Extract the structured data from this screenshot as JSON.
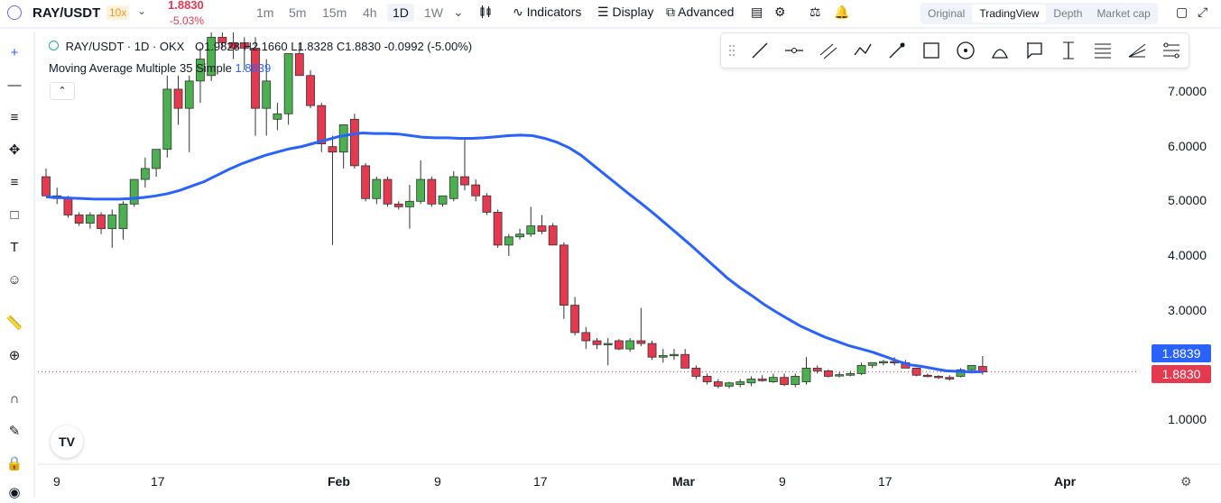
{
  "header": {
    "symbol": "RAY/USDT",
    "leverage": "10x",
    "price": "1.8830",
    "change_pct": "-5.03%",
    "timeframes": [
      "1m",
      "5m",
      "15m",
      "4h",
      "1D",
      "1W"
    ],
    "active_timeframe": "1D",
    "indicators_label": "Indicators",
    "display_label": "Display",
    "advanced_label": "Advanced",
    "views": [
      "Original",
      "TradingView",
      "Depth",
      "Market cap"
    ],
    "active_view": "TradingView"
  },
  "legend": {
    "title": "RAY/USDT · 1D · OKX",
    "ohlc": "O1.9828 H2.1660 L1.8328 C1.8830 -0.0992 (-5.00%)",
    "ma_label": "Moving Average Multiple 35 Simple",
    "ma_value": "1.8839"
  },
  "tags": {
    "ma": "1.8839",
    "last": "1.8830"
  },
  "colors": {
    "up": "#26a69a",
    "up_fill": "#4caf50",
    "down": "#e53950",
    "ma": "#2962ff"
  },
  "chart_data": {
    "type": "candlestick",
    "y_ticks": [
      "1.0000",
      "3.0000",
      "4.0000",
      "5.0000",
      "6.0000",
      "7.0000"
    ],
    "x_ticks": [
      "9",
      "17",
      "Feb",
      "9",
      "17",
      "Mar",
      "9",
      "17",
      "Apr"
    ],
    "ylim": [
      1.0,
      8.0
    ],
    "grid": false,
    "candles": [
      {
        "o": 5.45,
        "h": 5.6,
        "l": 5.1,
        "c": 5.1
      },
      {
        "o": 5.1,
        "h": 5.25,
        "l": 4.95,
        "c": 5.05
      },
      {
        "o": 5.05,
        "h": 5.1,
        "l": 4.7,
        "c": 4.75
      },
      {
        "o": 4.75,
        "h": 4.8,
        "l": 4.55,
        "c": 4.6
      },
      {
        "o": 4.6,
        "h": 4.8,
        "l": 4.5,
        "c": 4.75
      },
      {
        "o": 4.75,
        "h": 4.8,
        "l": 4.4,
        "c": 4.5
      },
      {
        "o": 4.5,
        "h": 4.85,
        "l": 4.15,
        "c": 4.75
      },
      {
        "o": 4.5,
        "h": 5.0,
        "l": 4.3,
        "c": 4.95
      },
      {
        "o": 4.95,
        "h": 5.4,
        "l": 4.9,
        "c": 5.4
      },
      {
        "o": 5.4,
        "h": 5.8,
        "l": 5.25,
        "c": 5.6
      },
      {
        "o": 5.6,
        "h": 5.9,
        "l": 5.45,
        "c": 5.95
      },
      {
        "o": 5.95,
        "h": 7.3,
        "l": 5.8,
        "c": 7.05
      },
      {
        "o": 7.05,
        "h": 7.3,
        "l": 6.4,
        "c": 6.7
      },
      {
        "o": 6.7,
        "h": 7.3,
        "l": 5.9,
        "c": 7.2
      },
      {
        "o": 7.2,
        "h": 7.8,
        "l": 6.8,
        "c": 7.6
      },
      {
        "o": 7.3,
        "h": 8.2,
        "l": 7.2,
        "c": 8.0
      },
      {
        "o": 8.0,
        "h": 8.2,
        "l": 7.8,
        "c": 7.9
      },
      {
        "o": 7.9,
        "h": 8.4,
        "l": 7.6,
        "c": 7.8
      },
      {
        "o": 7.9,
        "h": 8.0,
        "l": 7.4,
        "c": 7.8
      },
      {
        "o": 7.8,
        "h": 8.0,
        "l": 6.2,
        "c": 6.7
      },
      {
        "o": 6.7,
        "h": 7.6,
        "l": 6.2,
        "c": 7.2
      },
      {
        "o": 6.5,
        "h": 6.8,
        "l": 6.3,
        "c": 6.6
      },
      {
        "o": 6.6,
        "h": 7.7,
        "l": 6.4,
        "c": 7.7
      },
      {
        "o": 7.7,
        "h": 7.9,
        "l": 7.3,
        "c": 7.3
      },
      {
        "o": 7.3,
        "h": 7.4,
        "l": 6.7,
        "c": 6.75
      },
      {
        "o": 6.75,
        "h": 6.8,
        "l": 5.9,
        "c": 6.05
      },
      {
        "o": 6.0,
        "h": 6.2,
        "l": 4.2,
        "c": 5.9
      },
      {
        "o": 5.9,
        "h": 6.4,
        "l": 5.6,
        "c": 6.4
      },
      {
        "o": 6.5,
        "h": 6.6,
        "l": 5.6,
        "c": 5.65
      },
      {
        "o": 5.65,
        "h": 5.7,
        "l": 5.0,
        "c": 5.05
      },
      {
        "o": 5.05,
        "h": 5.45,
        "l": 4.95,
        "c": 5.4
      },
      {
        "o": 5.4,
        "h": 5.45,
        "l": 4.9,
        "c": 4.95
      },
      {
        "o": 4.95,
        "h": 5.0,
        "l": 4.85,
        "c": 4.9
      },
      {
        "o": 4.9,
        "h": 5.3,
        "l": 4.5,
        "c": 5.0
      },
      {
        "o": 5.0,
        "h": 5.75,
        "l": 4.95,
        "c": 5.4
      },
      {
        "o": 5.4,
        "h": 5.45,
        "l": 4.9,
        "c": 4.95
      },
      {
        "o": 4.95,
        "h": 5.1,
        "l": 4.9,
        "c": 5.1
      },
      {
        "o": 5.05,
        "h": 5.55,
        "l": 5.0,
        "c": 5.45
      },
      {
        "o": 5.45,
        "h": 6.15,
        "l": 5.2,
        "c": 5.3
      },
      {
        "o": 5.3,
        "h": 5.4,
        "l": 5.0,
        "c": 5.1
      },
      {
        "o": 5.1,
        "h": 5.15,
        "l": 4.75,
        "c": 4.8
      },
      {
        "o": 4.8,
        "h": 4.85,
        "l": 4.15,
        "c": 4.2
      },
      {
        "o": 4.2,
        "h": 4.4,
        "l": 4.0,
        "c": 4.35
      },
      {
        "o": 4.35,
        "h": 4.5,
        "l": 4.3,
        "c": 4.4
      },
      {
        "o": 4.4,
        "h": 4.9,
        "l": 4.35,
        "c": 4.55
      },
      {
        "o": 4.55,
        "h": 4.75,
        "l": 4.4,
        "c": 4.45
      },
      {
        "o": 4.55,
        "h": 4.6,
        "l": 4.2,
        "c": 4.2
      },
      {
        "o": 4.2,
        "h": 4.25,
        "l": 2.85,
        "c": 3.1
      },
      {
        "o": 3.1,
        "h": 3.25,
        "l": 2.55,
        "c": 2.6
      },
      {
        "o": 2.6,
        "h": 2.7,
        "l": 2.3,
        "c": 2.45
      },
      {
        "o": 2.45,
        "h": 2.5,
        "l": 2.3,
        "c": 2.38
      },
      {
        "o": 2.38,
        "h": 2.5,
        "l": 2.0,
        "c": 2.4
      },
      {
        "o": 2.45,
        "h": 2.48,
        "l": 2.28,
        "c": 2.3
      },
      {
        "o": 2.3,
        "h": 2.5,
        "l": 2.25,
        "c": 2.45
      },
      {
        "o": 2.45,
        "h": 3.05,
        "l": 2.35,
        "c": 2.4
      },
      {
        "o": 2.4,
        "h": 2.45,
        "l": 2.1,
        "c": 2.15
      },
      {
        "o": 2.15,
        "h": 2.3,
        "l": 2.05,
        "c": 2.18
      },
      {
        "o": 2.18,
        "h": 2.3,
        "l": 2.1,
        "c": 2.2
      },
      {
        "o": 2.2,
        "h": 2.3,
        "l": 1.95,
        "c": 1.95
      },
      {
        "o": 1.95,
        "h": 2.0,
        "l": 1.75,
        "c": 1.8
      },
      {
        "o": 1.8,
        "h": 1.85,
        "l": 1.65,
        "c": 1.7
      },
      {
        "o": 1.7,
        "h": 1.75,
        "l": 1.58,
        "c": 1.62
      },
      {
        "o": 1.62,
        "h": 1.7,
        "l": 1.58,
        "c": 1.68
      },
      {
        "o": 1.65,
        "h": 1.75,
        "l": 1.6,
        "c": 1.7
      },
      {
        "o": 1.68,
        "h": 1.8,
        "l": 1.62,
        "c": 1.75
      },
      {
        "o": 1.75,
        "h": 1.82,
        "l": 1.7,
        "c": 1.72
      },
      {
        "o": 1.7,
        "h": 1.85,
        "l": 1.68,
        "c": 1.78
      },
      {
        "o": 1.78,
        "h": 1.85,
        "l": 1.62,
        "c": 1.65
      },
      {
        "o": 1.65,
        "h": 1.85,
        "l": 1.6,
        "c": 1.8
      },
      {
        "o": 1.7,
        "h": 2.15,
        "l": 1.65,
        "c": 1.95
      },
      {
        "o": 1.95,
        "h": 2.0,
        "l": 1.85,
        "c": 1.9
      },
      {
        "o": 1.9,
        "h": 1.92,
        "l": 1.78,
        "c": 1.8
      },
      {
        "o": 1.82,
        "h": 1.88,
        "l": 1.78,
        "c": 1.83
      },
      {
        "o": 1.82,
        "h": 1.9,
        "l": 1.8,
        "c": 1.85
      },
      {
        "o": 1.85,
        "h": 2.05,
        "l": 1.82,
        "c": 2.0
      },
      {
        "o": 2.0,
        "h": 2.05,
        "l": 1.95,
        "c": 2.05
      },
      {
        "o": 2.05,
        "h": 2.1,
        "l": 2.0,
        "c": 2.07
      },
      {
        "o": 2.07,
        "h": 2.15,
        "l": 2.0,
        "c": 2.05
      },
      {
        "o": 2.05,
        "h": 2.1,
        "l": 1.95,
        "c": 1.95
      },
      {
        "o": 1.95,
        "h": 1.95,
        "l": 1.8,
        "c": 1.82
      },
      {
        "o": 1.82,
        "h": 1.85,
        "l": 1.78,
        "c": 1.8
      },
      {
        "o": 1.8,
        "h": 1.82,
        "l": 1.75,
        "c": 1.78
      },
      {
        "o": 1.78,
        "h": 1.82,
        "l": 1.72,
        "c": 1.75
      },
      {
        "o": 1.8,
        "h": 1.95,
        "l": 1.78,
        "c": 1.92
      },
      {
        "o": 1.92,
        "h": 2.0,
        "l": 1.85,
        "c": 2.0
      },
      {
        "o": 1.98,
        "h": 2.17,
        "l": 1.83,
        "c": 1.88
      }
    ],
    "ma": [
      5.08,
      5.07,
      5.06,
      5.05,
      5.04,
      5.04,
      5.04,
      5.05,
      5.07,
      5.1,
      5.14,
      5.2,
      5.28,
      5.36,
      5.47,
      5.58,
      5.68,
      5.76,
      5.84,
      5.9,
      5.96,
      6.0,
      6.06,
      6.12,
      6.18,
      6.22,
      6.25,
      6.24,
      6.24,
      6.23,
      6.2,
      6.17,
      6.16,
      6.16,
      6.15,
      6.15,
      6.16,
      6.18,
      6.2,
      6.21,
      6.2,
      6.15,
      6.08,
      5.98,
      5.84,
      5.66,
      5.48,
      5.3,
      5.12,
      4.95,
      4.77,
      4.58,
      4.39,
      4.2,
      4.0,
      3.8,
      3.6,
      3.43,
      3.28,
      3.12,
      2.98,
      2.85,
      2.72,
      2.62,
      2.52,
      2.44,
      2.36,
      2.3,
      2.24,
      2.16,
      2.08,
      2.01,
      1.98,
      1.94,
      1.9,
      1.89,
      1.88,
      1.884
    ]
  }
}
